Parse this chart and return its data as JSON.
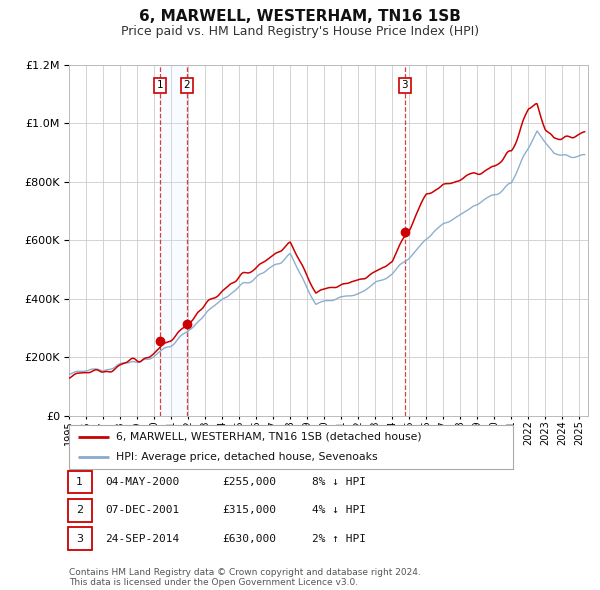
{
  "title": "6, MARWELL, WESTERHAM, TN16 1SB",
  "subtitle": "Price paid vs. HM Land Registry's House Price Index (HPI)",
  "title_fontsize": 11,
  "subtitle_fontsize": 9,
  "background_color": "#ffffff",
  "plot_bg_color": "#ffffff",
  "grid_color": "#cccccc",
  "legend_label_red": "6, MARWELL, WESTERHAM, TN16 1SB (detached house)",
  "legend_label_blue": "HPI: Average price, detached house, Sevenoaks",
  "red_color": "#cc0000",
  "blue_color": "#88aacc",
  "shade_color": "#ddeeff",
  "transactions": [
    {
      "num": 1,
      "date": "04-MAY-2000",
      "price": "£255,000",
      "pct": "8% ↓ HPI",
      "year": 2000.36
    },
    {
      "num": 2,
      "date": "07-DEC-2001",
      "price": "£315,000",
      "pct": "4% ↓ HPI",
      "year": 2001.93
    },
    {
      "num": 3,
      "date": "24-SEP-2014",
      "price": "£630,000",
      "pct": "2% ↑ HPI",
      "year": 2014.73
    }
  ],
  "transaction_values": [
    255000,
    315000,
    630000
  ],
  "footnote": "Contains HM Land Registry data © Crown copyright and database right 2024.\nThis data is licensed under the Open Government Licence v3.0.",
  "ylim": [
    0,
    1200000
  ],
  "yticks": [
    0,
    200000,
    400000,
    600000,
    800000,
    1000000,
    1200000
  ],
  "xmin": 1995,
  "xmax": 2025.5
}
